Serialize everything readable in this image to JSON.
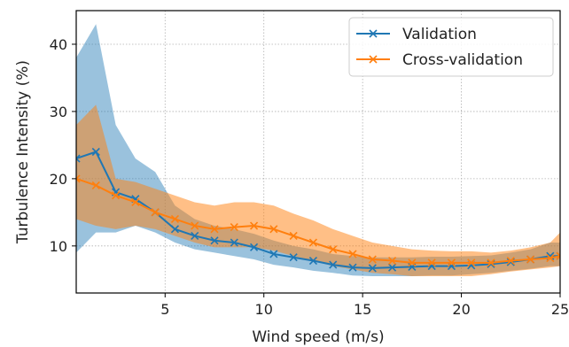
{
  "chart_data": {
    "type": "line",
    "title": "",
    "xlabel": "Wind speed (m/s)",
    "ylabel": "Turbulence Intensity (%)",
    "xlim": [
      0.5,
      25
    ],
    "ylim": [
      3,
      45
    ],
    "xticks": [
      5,
      10,
      15,
      20,
      25
    ],
    "yticks": [
      10,
      20,
      30,
      40
    ],
    "grid": true,
    "legend_position": "top-right",
    "x": [
      0.5,
      1.5,
      2.5,
      3.5,
      4.5,
      5.5,
      6.5,
      7.5,
      8.5,
      9.5,
      10.5,
      11.5,
      12.5,
      13.5,
      14.5,
      15.5,
      16.5,
      17.5,
      18.5,
      19.5,
      20.5,
      21.5,
      22.5,
      23.5,
      24.5,
      25
    ],
    "series": [
      {
        "name": "Validation",
        "color": "#1f77b4",
        "values": [
          23.0,
          24.0,
          18.0,
          17.0,
          15.0,
          12.5,
          11.5,
          10.8,
          10.5,
          9.8,
          8.8,
          8.3,
          7.8,
          7.2,
          6.8,
          6.7,
          6.8,
          6.9,
          7.0,
          7.0,
          7.1,
          7.3,
          7.6,
          8.0,
          8.5,
          8.5
        ],
        "upper": [
          38.0,
          43.0,
          28.0,
          23.0,
          21.0,
          16.0,
          14.0,
          13.0,
          12.5,
          11.8,
          10.8,
          10.0,
          9.5,
          8.8,
          8.5,
          8.3,
          8.3,
          8.3,
          8.4,
          8.4,
          8.5,
          8.6,
          9.0,
          9.5,
          10.5,
          10.5
        ],
        "lower": [
          9.0,
          12.0,
          12.0,
          13.0,
          12.0,
          10.5,
          9.5,
          9.0,
          8.5,
          8.0,
          7.2,
          6.8,
          6.3,
          6.0,
          5.6,
          5.5,
          5.5,
          5.5,
          5.6,
          5.6,
          5.8,
          6.0,
          6.3,
          6.6,
          7.0,
          7.0
        ]
      },
      {
        "name": "Cross-validation",
        "color": "#ff7f0e",
        "values": [
          20.0,
          19.0,
          17.5,
          16.5,
          15.0,
          14.0,
          13.0,
          12.5,
          12.8,
          13.0,
          12.5,
          11.5,
          10.5,
          9.5,
          8.8,
          8.0,
          7.8,
          7.5,
          7.5,
          7.5,
          7.5,
          7.5,
          7.8,
          8.0,
          8.2,
          8.5
        ],
        "upper": [
          28.0,
          31.0,
          20.0,
          19.5,
          18.5,
          17.5,
          16.5,
          16.0,
          16.5,
          16.5,
          16.0,
          14.8,
          13.8,
          12.5,
          11.5,
          10.5,
          10.0,
          9.5,
          9.3,
          9.2,
          9.2,
          9.0,
          9.3,
          9.8,
          10.5,
          12.0
        ],
        "lower": [
          14.0,
          13.0,
          12.5,
          13.0,
          12.5,
          11.5,
          10.5,
          9.8,
          9.8,
          9.8,
          9.3,
          8.5,
          7.8,
          7.0,
          6.5,
          6.0,
          5.8,
          5.5,
          5.5,
          5.5,
          5.5,
          5.8,
          6.2,
          6.5,
          6.8,
          7.0
        ]
      }
    ]
  }
}
